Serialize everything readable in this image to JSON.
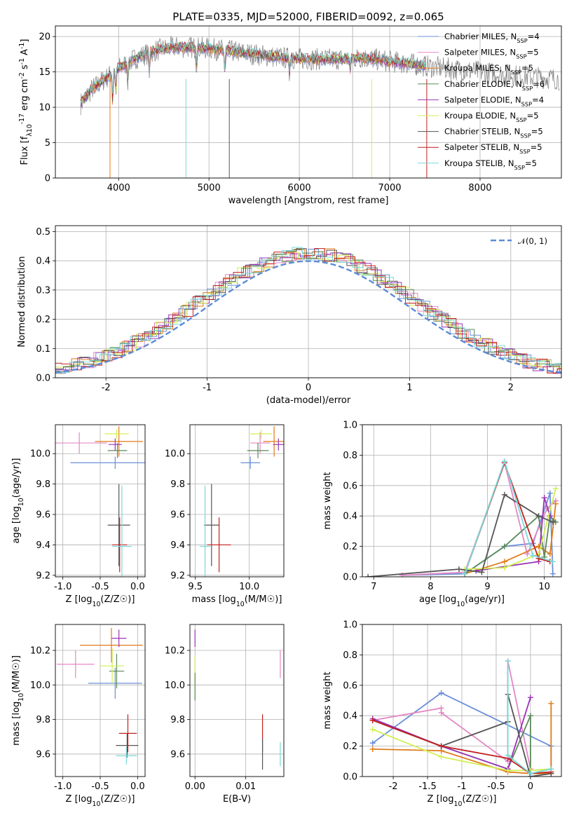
{
  "figure": {
    "title": "PLATE=0335, MJD=52000, FIBERID=0092, z=0.065"
  },
  "colors": {
    "Chabrier MILES": "#6a8fd8",
    "Salpeter MILES": "#e487c4",
    "Kroupa MILES": "#e07b1a",
    "Chabrier ELODIE": "#5a8a5a",
    "Salpeter ELODIE": "#9a33b8",
    "Kroupa ELODIE": "#d2ef52",
    "Chabrier STELIB": "#555555",
    "Salpeter STELIB": "#c41f1f",
    "Kroupa STELIB": "#7ad8d8",
    "data": "#808080",
    "normal": "#5b8bd6"
  },
  "chart_data": [
    {
      "type": "line",
      "id": "spectrum",
      "xlabel": "wavelength [Angstrom, rest frame]",
      "ylabel": "Flux [f_λ10^-17 erg cm^-2 s^-1 A^-1]",
      "xlim": [
        3300,
        8900
      ],
      "ylim": [
        0,
        21.5
      ],
      "xticks": [
        4000,
        5000,
        6000,
        7000,
        8000
      ],
      "yticks": [
        0,
        5,
        10,
        15,
        20
      ],
      "legend_position": "upper right",
      "legend": [
        "Chabrier MILES, N_SSP=4",
        "Salpeter MILES, N_SSP=5",
        "Kroupa MILES, N_SSP=5",
        "Chabrier ELODIE, N_SSP=6",
        "Salpeter ELODIE, N_SSP=4",
        "Kroupa ELODIE, N_SSP=5",
        "Chabrier STELIB, N_SSP=5",
        "Salpeter STELIB, N_SSP=5",
        "Kroupa STELIB, N_SSP=5"
      ],
      "continuum_points": [
        [
          3580,
          10.5
        ],
        [
          3700,
          12.5
        ],
        [
          3800,
          13.5
        ],
        [
          3900,
          14.5
        ],
        [
          4000,
          15.5
        ],
        [
          4200,
          17
        ],
        [
          4400,
          18
        ],
        [
          4600,
          18.5
        ],
        [
          4800,
          18.5
        ],
        [
          5000,
          18.3
        ],
        [
          5200,
          18
        ],
        [
          5500,
          17.5
        ],
        [
          5800,
          17
        ],
        [
          6100,
          16.8
        ],
        [
          6400,
          16.8
        ],
        [
          6700,
          17
        ],
        [
          7000,
          16.5
        ],
        [
          7300,
          16
        ],
        [
          7600,
          15.5
        ],
        [
          8000,
          15
        ],
        [
          8400,
          14.5
        ],
        [
          8880,
          14
        ]
      ],
      "model_range": [
        3580,
        7400
      ],
      "data_range": [
        3580,
        8880
      ]
    },
    {
      "type": "line",
      "id": "residual-histogram",
      "xlabel": "(data-model)/error",
      "ylabel": "Normed distribution",
      "xlim": [
        -2.5,
        2.5
      ],
      "ylim": [
        0,
        0.52
      ],
      "xticks": [
        -2,
        -1,
        0,
        1,
        2
      ],
      "yticks": [
        0,
        0.1,
        0.2,
        0.3,
        0.4,
        0.5
      ],
      "legend": [
        "𝒩(0, 1)"
      ],
      "legend_position": "upper right",
      "bin_width": 0.1
    },
    {
      "type": "scatter",
      "id": "age-vs-Z",
      "xlabel": "Z [log10(Z/Z☉)]",
      "ylabel": "age  [log10(age/yr)]",
      "xlim": [
        -1.1,
        0.1
      ],
      "ylim": [
        9.19,
        10.19
      ],
      "xticks": [
        -1.0,
        -0.5,
        0.0
      ],
      "yticks": [
        9.2,
        9.4,
        9.6,
        9.8,
        10.0
      ],
      "points": [
        {
          "model": "Chabrier MILES",
          "x": -0.3,
          "xerr": 0.6,
          "y": 9.94,
          "yerr": 0.04
        },
        {
          "model": "Salpeter MILES",
          "x": -0.78,
          "xerr": 0.37,
          "y": 10.07,
          "yerr": 0.07
        },
        {
          "model": "Kroupa MILES",
          "x": -0.25,
          "xerr": 0.32,
          "y": 10.08,
          "yerr": 0.1
        },
        {
          "model": "Chabrier ELODIE",
          "x": -0.27,
          "xerr": 0.13,
          "y": 10.02,
          "yerr": 0.05
        },
        {
          "model": "Salpeter ELODIE",
          "x": -0.3,
          "xerr": 0.09,
          "y": 10.06,
          "yerr": 0.04
        },
        {
          "model": "Kroupa ELODIE",
          "x": -0.28,
          "xerr": 0.16,
          "y": 10.13,
          "yerr": 0.03
        },
        {
          "model": "Chabrier STELIB",
          "x": -0.25,
          "xerr": 0.15,
          "y": 9.53,
          "yerr": 0.27
        },
        {
          "model": "Salpeter STELIB",
          "x": -0.24,
          "xerr": 0.1,
          "y": 9.4,
          "yerr": 0.18
        },
        {
          "model": "Kroupa STELIB",
          "x": -0.21,
          "xerr": 0.13,
          "y": 9.39,
          "yerr": 0.4
        }
      ]
    },
    {
      "type": "scatter",
      "id": "age-vs-mass",
      "xlabel": "mass [log10(M/M☉)]",
      "ylabel": "",
      "xlim": [
        9.45,
        10.32
      ],
      "ylim": [
        9.19,
        10.19
      ],
      "xticks": [
        9.5,
        10.0
      ],
      "yticks": [
        9.2,
        9.4,
        9.6,
        9.8,
        10.0
      ],
      "points": [
        {
          "model": "Chabrier MILES",
          "x": 10.01,
          "xerr": 0.09,
          "y": 9.94,
          "yerr": 0.04
        },
        {
          "model": "Salpeter MILES",
          "x": 10.1,
          "xerr": 0.09,
          "y": 10.07,
          "yerr": 0.07
        },
        {
          "model": "Kroupa MILES",
          "x": 10.23,
          "xerr": 0.1,
          "y": 10.08,
          "yerr": 0.1
        },
        {
          "model": "Chabrier ELODIE",
          "x": 10.08,
          "xerr": 0.1,
          "y": 10.02,
          "yerr": 0.05
        },
        {
          "model": "Salpeter ELODIE",
          "x": 10.27,
          "xerr": 0.05,
          "y": 10.06,
          "yerr": 0.04
        },
        {
          "model": "Kroupa ELODIE",
          "x": 10.11,
          "xerr": 0.1,
          "y": 10.13,
          "yerr": 0.03
        },
        {
          "model": "Chabrier STELIB",
          "x": 9.65,
          "xerr": 0.07,
          "y": 9.53,
          "yerr": 0.27
        },
        {
          "model": "Salpeter STELIB",
          "x": 9.72,
          "xerr": 0.11,
          "y": 9.4,
          "yerr": 0.18
        },
        {
          "model": "Kroupa STELIB",
          "x": 9.59,
          "xerr": 0.05,
          "y": 9.39,
          "yerr": 0.4
        }
      ]
    },
    {
      "type": "line",
      "id": "weight-vs-age",
      "xlabel": "age  [log10(age/yr)]",
      "ylabel": "mass weight",
      "xlim": [
        6.8,
        10.3
      ],
      "ylim": [
        0,
        1.0
      ],
      "xticks": [
        7,
        8,
        9,
        10
      ],
      "yticks": [
        0.0,
        0.2,
        0.4,
        0.6,
        0.8,
        1.0
      ],
      "series": [
        {
          "model": "Chabrier MILES",
          "x": [
            7.5,
            8.6,
            9.3,
            9.8,
            10.1,
            10.15
          ],
          "y": [
            0.01,
            0.02,
            0.2,
            0.22,
            0.55,
            0.02
          ]
        },
        {
          "model": "Salpeter MILES",
          "x": [
            7.5,
            8.6,
            9.3,
            9.7,
            10.05,
            10.2
          ],
          "y": [
            0.01,
            0.03,
            0.75,
            0.15,
            0.45,
            0.5
          ]
        },
        {
          "model": "Kroupa MILES",
          "x": [
            8.6,
            9.3,
            9.9,
            10.1,
            10.2
          ],
          "y": [
            0.02,
            0.1,
            0.2,
            0.15,
            0.48
          ]
        },
        {
          "model": "Chabrier ELODIE",
          "x": [
            8.6,
            9.3,
            9.9,
            10.0,
            10.1,
            10.2
          ],
          "y": [
            0.02,
            0.2,
            0.4,
            0.13,
            0.4,
            0.36
          ]
        },
        {
          "model": "Salpeter ELODIE",
          "x": [
            8.8,
            9.9,
            10.0,
            10.1
          ],
          "y": [
            0.04,
            0.1,
            0.52,
            0.4
          ]
        },
        {
          "model": "Kroupa ELODIE",
          "x": [
            8.6,
            9.3,
            9.9,
            10.2
          ],
          "y": [
            0.05,
            0.06,
            0.15,
            0.58
          ]
        },
        {
          "model": "Chabrier STELIB",
          "x": [
            6.9,
            8.5,
            8.9,
            9.3,
            9.9,
            10.15
          ],
          "y": [
            0.0,
            0.05,
            0.03,
            0.54,
            0.4,
            0.36
          ]
        },
        {
          "model": "Salpeter STELIB",
          "x": [
            8.6,
            9.3,
            9.9,
            10.1
          ],
          "y": [
            0.02,
            0.75,
            0.12,
            0.1
          ]
        },
        {
          "model": "Kroupa STELIB",
          "x": [
            8.6,
            9.3,
            9.8,
            10.15
          ],
          "y": [
            0.02,
            0.76,
            0.14,
            0.1
          ]
        }
      ]
    },
    {
      "type": "scatter",
      "id": "mass-vs-Z",
      "xlabel": "Z [log10(Z/Z☉)]",
      "ylabel": "mass [log10(M/M☉)]",
      "xlim": [
        -1.1,
        0.1
      ],
      "ylim": [
        9.47,
        10.35
      ],
      "xticks": [
        -1.0,
        -0.5,
        0.0
      ],
      "yticks": [
        9.6,
        9.8,
        10.0,
        10.2
      ],
      "points": [
        {
          "model": "Chabrier MILES",
          "x": -0.3,
          "xerr": 0.36,
          "y": 10.01,
          "yerr": 0.09
        },
        {
          "model": "Salpeter MILES",
          "x": -0.83,
          "xerr": 0.25,
          "y": 10.12,
          "yerr": 0.08
        },
        {
          "model": "Kroupa MILES",
          "x": -0.35,
          "xerr": 0.42,
          "y": 10.23,
          "yerr": 0.1
        },
        {
          "model": "Chabrier ELODIE",
          "x": -0.28,
          "xerr": 0.1,
          "y": 10.08,
          "yerr": 0.1
        },
        {
          "model": "Salpeter ELODIE",
          "x": -0.25,
          "xerr": 0.1,
          "y": 10.27,
          "yerr": 0.05
        },
        {
          "model": "Kroupa ELODIE",
          "x": -0.34,
          "xerr": 0.16,
          "y": 10.11,
          "yerr": 0.1
        },
        {
          "model": "Chabrier STELIB",
          "x": -0.14,
          "xerr": 0.15,
          "y": 9.65,
          "yerr": 0.07
        },
        {
          "model": "Salpeter STELIB",
          "x": -0.13,
          "xerr": 0.12,
          "y": 9.72,
          "yerr": 0.11
        },
        {
          "model": "Kroupa STELIB",
          "x": -0.15,
          "xerr": 0.14,
          "y": 9.59,
          "yerr": 0.05
        }
      ]
    },
    {
      "type": "scatter",
      "id": "mass-vs-ebv",
      "xlabel": "E(B-V)",
      "ylabel": "",
      "xlim": [
        -0.001,
        0.0175
      ],
      "ylim": [
        9.47,
        10.35
      ],
      "xticks": [
        0.0,
        0.01
      ],
      "xticklabels": [
        "0.00",
        "0.01"
      ],
      "yticks": [
        9.6,
        9.8,
        10.0,
        10.2
      ],
      "points": [
        {
          "model": "Salpeter ELODIE",
          "x": 0.0,
          "y": 10.27,
          "yerr": 0.05
        },
        {
          "model": "Kroupa ELODIE",
          "x": 0.0,
          "y": 10.05,
          "yerr": 0.12
        },
        {
          "model": "Chabrier ELODIE",
          "x": 0.0,
          "y": 9.99,
          "yerr": 0.08
        },
        {
          "model": "Salpeter MILES",
          "x": 0.0168,
          "y": 10.12,
          "yerr": 0.08
        },
        {
          "model": "Salpeter STELIB",
          "x": 0.0133,
          "y": 9.72,
          "yerr": 0.11
        },
        {
          "model": "Chabrier STELIB",
          "x": 0.0133,
          "y": 9.6,
          "yerr": 0.09
        },
        {
          "model": "Kroupa STELIB",
          "x": 0.0168,
          "y": 9.6,
          "yerr": 0.07
        }
      ]
    },
    {
      "type": "line",
      "id": "weight-vs-Z",
      "xlabel": "Z [log10(Z/Z☉)]",
      "ylabel": "mass weight",
      "xlim": [
        -2.45,
        0.45
      ],
      "ylim": [
        0,
        1.0
      ],
      "xticks": [
        -2.0,
        -1.5,
        -1.0,
        -0.5,
        0.0
      ],
      "yticks": [
        0.0,
        0.2,
        0.4,
        0.6,
        0.8,
        1.0
      ],
      "series": [
        {
          "model": "Chabrier MILES",
          "x": [
            -2.3,
            -1.3,
            0.3,
            0.3
          ],
          "y": [
            0.22,
            0.55,
            0.2,
            0.02
          ]
        },
        {
          "model": "Salpeter MILES",
          "x": [
            -2.3,
            -1.3,
            -1.3,
            -0.33,
            -0.33,
            0.0
          ],
          "y": [
            0.37,
            0.45,
            0.42,
            0.1,
            0.76,
            0.05
          ]
        },
        {
          "model": "Kroupa MILES",
          "x": [
            -2.3,
            -1.3,
            -0.33,
            0.0,
            0.3,
            0.3
          ],
          "y": [
            0.18,
            0.17,
            0.03,
            0.02,
            0.02,
            0.48
          ]
        },
        {
          "model": "Chabrier ELODIE",
          "x": [
            -2.3,
            -1.3,
            -0.33,
            0.0,
            0.0,
            0.3
          ],
          "y": [
            0.37,
            0.2,
            0.05,
            0.4,
            0.02,
            0.05
          ]
        },
        {
          "model": "Salpeter ELODIE",
          "x": [
            -2.3,
            -1.3,
            -0.33,
            0.0
          ],
          "y": [
            0.38,
            0.2,
            0.05,
            0.52
          ]
        },
        {
          "model": "Kroupa ELODIE",
          "x": [
            -2.3,
            -1.3,
            -0.33,
            0.0,
            0.3
          ],
          "y": [
            0.31,
            0.13,
            0.04,
            0.04,
            0.05
          ]
        },
        {
          "model": "Chabrier STELIB",
          "x": [
            -2.3,
            -1.3,
            -0.33,
            -0.33,
            0.0,
            0.3
          ],
          "y": [
            0.37,
            0.2,
            0.36,
            0.54,
            0.0,
            0.02
          ]
        },
        {
          "model": "Salpeter STELIB",
          "x": [
            -2.3,
            -1.3,
            -0.33,
            0.0,
            0.3
          ],
          "y": [
            0.37,
            0.2,
            0.12,
            0.02,
            0.03
          ]
        },
        {
          "model": "Kroupa STELIB",
          "x": [
            -0.33,
            -0.33,
            0.0,
            0.3
          ],
          "y": [
            0.76,
            0.14,
            0.02,
            0.05
          ]
        }
      ]
    }
  ]
}
